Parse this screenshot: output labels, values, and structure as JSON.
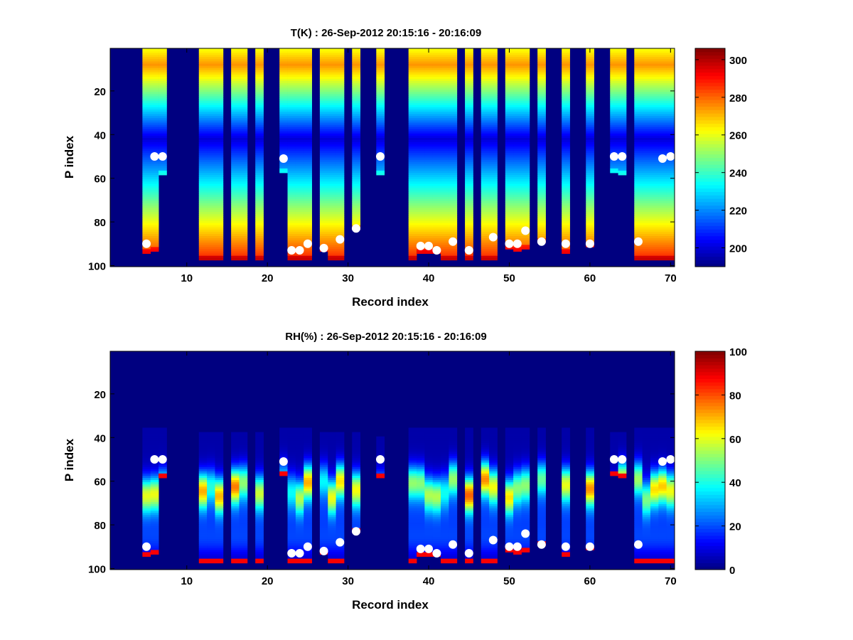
{
  "figure": {
    "background": "#ffffff"
  },
  "chart_data": [
    {
      "type": "heatmap",
      "title": "T(K) : 26-Sep-2012 20:15:16 - 20:16:09",
      "xlabel": "Record index",
      "ylabel": "P index",
      "xlim": [
        0.5,
        70.5
      ],
      "ylim": [
        0.5,
        100.5
      ],
      "y_reversed": true,
      "xticks": [
        10,
        20,
        30,
        40,
        50,
        60,
        70
      ],
      "yticks": [
        20,
        40,
        60,
        80,
        100
      ],
      "colorbar": {
        "range": [
          190,
          306
        ],
        "ticks": [
          200,
          220,
          240,
          260,
          280,
          300
        ],
        "colormap": "jet"
      },
      "fill_value": 190,
      "profile_model": "temperature",
      "profiles": [
        {
          "record": 5,
          "top": 1,
          "bottom": 94
        },
        {
          "record": 6,
          "top": 1,
          "bottom": 93
        },
        {
          "record": 7,
          "top": 1,
          "bottom": 58
        },
        {
          "record": 12,
          "top": 1,
          "bottom": 97
        },
        {
          "record": 13,
          "top": 1,
          "bottom": 97
        },
        {
          "record": 14,
          "top": 1,
          "bottom": 97
        },
        {
          "record": 16,
          "top": 1,
          "bottom": 97
        },
        {
          "record": 17,
          "top": 1,
          "bottom": 97
        },
        {
          "record": 19,
          "top": 1,
          "bottom": 97
        },
        {
          "record": 22,
          "top": 1,
          "bottom": 57
        },
        {
          "record": 23,
          "top": 1,
          "bottom": 97
        },
        {
          "record": 24,
          "top": 1,
          "bottom": 97
        },
        {
          "record": 25,
          "top": 1,
          "bottom": 97
        },
        {
          "record": 27,
          "top": 1,
          "bottom": 93
        },
        {
          "record": 28,
          "top": 1,
          "bottom": 97
        },
        {
          "record": 29,
          "top": 1,
          "bottom": 97
        },
        {
          "record": 31,
          "top": 1,
          "bottom": 83
        },
        {
          "record": 34,
          "top": 1,
          "bottom": 58
        },
        {
          "record": 38,
          "top": 1,
          "bottom": 97
        },
        {
          "record": 39,
          "top": 1,
          "bottom": 94
        },
        {
          "record": 40,
          "top": 1,
          "bottom": 94
        },
        {
          "record": 41,
          "top": 1,
          "bottom": 94
        },
        {
          "record": 42,
          "top": 1,
          "bottom": 97
        },
        {
          "record": 43,
          "top": 1,
          "bottom": 97
        },
        {
          "record": 45,
          "top": 1,
          "bottom": 97
        },
        {
          "record": 47,
          "top": 1,
          "bottom": 97
        },
        {
          "record": 48,
          "top": 1,
          "bottom": 97
        },
        {
          "record": 50,
          "top": 1,
          "bottom": 92
        },
        {
          "record": 51,
          "top": 1,
          "bottom": 93
        },
        {
          "record": 52,
          "top": 1,
          "bottom": 92
        },
        {
          "record": 54,
          "top": 1,
          "bottom": 89
        },
        {
          "record": 57,
          "top": 1,
          "bottom": 94
        },
        {
          "record": 60,
          "top": 1,
          "bottom": 91
        },
        {
          "record": 63,
          "top": 1,
          "bottom": 57
        },
        {
          "record": 64,
          "top": 1,
          "bottom": 58
        },
        {
          "record": 66,
          "top": 1,
          "bottom": 97
        },
        {
          "record": 67,
          "top": 1,
          "bottom": 97
        },
        {
          "record": 68,
          "top": 1,
          "bottom": 97
        },
        {
          "record": 69,
          "top": 1,
          "bottom": 97
        },
        {
          "record": 70,
          "top": 1,
          "bottom": 97
        }
      ],
      "markers": [
        {
          "record": 5,
          "p": 90
        },
        {
          "record": 6,
          "p": 50
        },
        {
          "record": 7,
          "p": 50
        },
        {
          "record": 22,
          "p": 51
        },
        {
          "record": 23,
          "p": 93
        },
        {
          "record": 24,
          "p": 93
        },
        {
          "record": 25,
          "p": 90
        },
        {
          "record": 27,
          "p": 92
        },
        {
          "record": 29,
          "p": 88
        },
        {
          "record": 31,
          "p": 83
        },
        {
          "record": 34,
          "p": 50
        },
        {
          "record": 39,
          "p": 91
        },
        {
          "record": 40,
          "p": 91
        },
        {
          "record": 41,
          "p": 93
        },
        {
          "record": 43,
          "p": 89
        },
        {
          "record": 45,
          "p": 93
        },
        {
          "record": 48,
          "p": 87
        },
        {
          "record": 50,
          "p": 90
        },
        {
          "record": 51,
          "p": 90
        },
        {
          "record": 52,
          "p": 84
        },
        {
          "record": 54,
          "p": 89
        },
        {
          "record": 57,
          "p": 90
        },
        {
          "record": 60,
          "p": 90
        },
        {
          "record": 63,
          "p": 50
        },
        {
          "record": 64,
          "p": 50
        },
        {
          "record": 66,
          "p": 89
        },
        {
          "record": 69,
          "p": 51
        },
        {
          "record": 70,
          "p": 50
        }
      ]
    },
    {
      "type": "heatmap",
      "title": "RH(%) : 26-Sep-2012 20:15:16 - 20:16:09",
      "xlabel": "Record index",
      "ylabel": "P index",
      "xlim": [
        0.5,
        70.5
      ],
      "ylim": [
        0.5,
        100.5
      ],
      "y_reversed": true,
      "xticks": [
        10,
        20,
        30,
        40,
        50,
        60,
        70
      ],
      "yticks": [
        20,
        40,
        60,
        80,
        100
      ],
      "colorbar": {
        "range": [
          0,
          100
        ],
        "ticks": [
          0,
          20,
          40,
          60,
          80,
          100
        ],
        "colormap": "jet"
      },
      "fill_value": 0,
      "profile_model": "humidity",
      "profiles": [
        {
          "record": 5,
          "top": 36,
          "bottom": 94
        },
        {
          "record": 6,
          "top": 36,
          "bottom": 93
        },
        {
          "record": 7,
          "top": 36,
          "bottom": 58
        },
        {
          "record": 12,
          "top": 38,
          "bottom": 97
        },
        {
          "record": 13,
          "top": 38,
          "bottom": 97
        },
        {
          "record": 14,
          "top": 38,
          "bottom": 97
        },
        {
          "record": 16,
          "top": 38,
          "bottom": 97
        },
        {
          "record": 17,
          "top": 38,
          "bottom": 97
        },
        {
          "record": 19,
          "top": 38,
          "bottom": 97
        },
        {
          "record": 22,
          "top": 36,
          "bottom": 57
        },
        {
          "record": 23,
          "top": 36,
          "bottom": 97
        },
        {
          "record": 24,
          "top": 36,
          "bottom": 97
        },
        {
          "record": 25,
          "top": 36,
          "bottom": 97
        },
        {
          "record": 27,
          "top": 38,
          "bottom": 93
        },
        {
          "record": 28,
          "top": 38,
          "bottom": 97
        },
        {
          "record": 29,
          "top": 38,
          "bottom": 97
        },
        {
          "record": 31,
          "top": 38,
          "bottom": 83
        },
        {
          "record": 34,
          "top": 40,
          "bottom": 58
        },
        {
          "record": 38,
          "top": 36,
          "bottom": 97
        },
        {
          "record": 39,
          "top": 36,
          "bottom": 94
        },
        {
          "record": 40,
          "top": 36,
          "bottom": 94
        },
        {
          "record": 41,
          "top": 36,
          "bottom": 94
        },
        {
          "record": 42,
          "top": 36,
          "bottom": 97
        },
        {
          "record": 43,
          "top": 36,
          "bottom": 97
        },
        {
          "record": 45,
          "top": 36,
          "bottom": 97
        },
        {
          "record": 47,
          "top": 36,
          "bottom": 97
        },
        {
          "record": 48,
          "top": 36,
          "bottom": 97
        },
        {
          "record": 50,
          "top": 36,
          "bottom": 92
        },
        {
          "record": 51,
          "top": 36,
          "bottom": 93
        },
        {
          "record": 52,
          "top": 36,
          "bottom": 92
        },
        {
          "record": 54,
          "top": 36,
          "bottom": 89
        },
        {
          "record": 57,
          "top": 36,
          "bottom": 94
        },
        {
          "record": 60,
          "top": 36,
          "bottom": 91
        },
        {
          "record": 63,
          "top": 38,
          "bottom": 57
        },
        {
          "record": 64,
          "top": 38,
          "bottom": 58
        },
        {
          "record": 66,
          "top": 36,
          "bottom": 97
        },
        {
          "record": 67,
          "top": 36,
          "bottom": 97
        },
        {
          "record": 68,
          "top": 36,
          "bottom": 97
        },
        {
          "record": 69,
          "top": 36,
          "bottom": 97
        },
        {
          "record": 70,
          "top": 36,
          "bottom": 97
        }
      ],
      "markers": [
        {
          "record": 5,
          "p": 90
        },
        {
          "record": 6,
          "p": 50
        },
        {
          "record": 7,
          "p": 50
        },
        {
          "record": 22,
          "p": 51
        },
        {
          "record": 23,
          "p": 93
        },
        {
          "record": 24,
          "p": 93
        },
        {
          "record": 25,
          "p": 90
        },
        {
          "record": 27,
          "p": 92
        },
        {
          "record": 29,
          "p": 88
        },
        {
          "record": 31,
          "p": 83
        },
        {
          "record": 34,
          "p": 50
        },
        {
          "record": 39,
          "p": 91
        },
        {
          "record": 40,
          "p": 91
        },
        {
          "record": 41,
          "p": 93
        },
        {
          "record": 43,
          "p": 89
        },
        {
          "record": 45,
          "p": 93
        },
        {
          "record": 48,
          "p": 87
        },
        {
          "record": 50,
          "p": 90
        },
        {
          "record": 51,
          "p": 90
        },
        {
          "record": 52,
          "p": 84
        },
        {
          "record": 54,
          "p": 89
        },
        {
          "record": 57,
          "p": 90
        },
        {
          "record": 60,
          "p": 90
        },
        {
          "record": 63,
          "p": 50
        },
        {
          "record": 64,
          "p": 50
        },
        {
          "record": 66,
          "p": 89
        },
        {
          "record": 69,
          "p": 51
        },
        {
          "record": 70,
          "p": 50
        }
      ]
    }
  ]
}
